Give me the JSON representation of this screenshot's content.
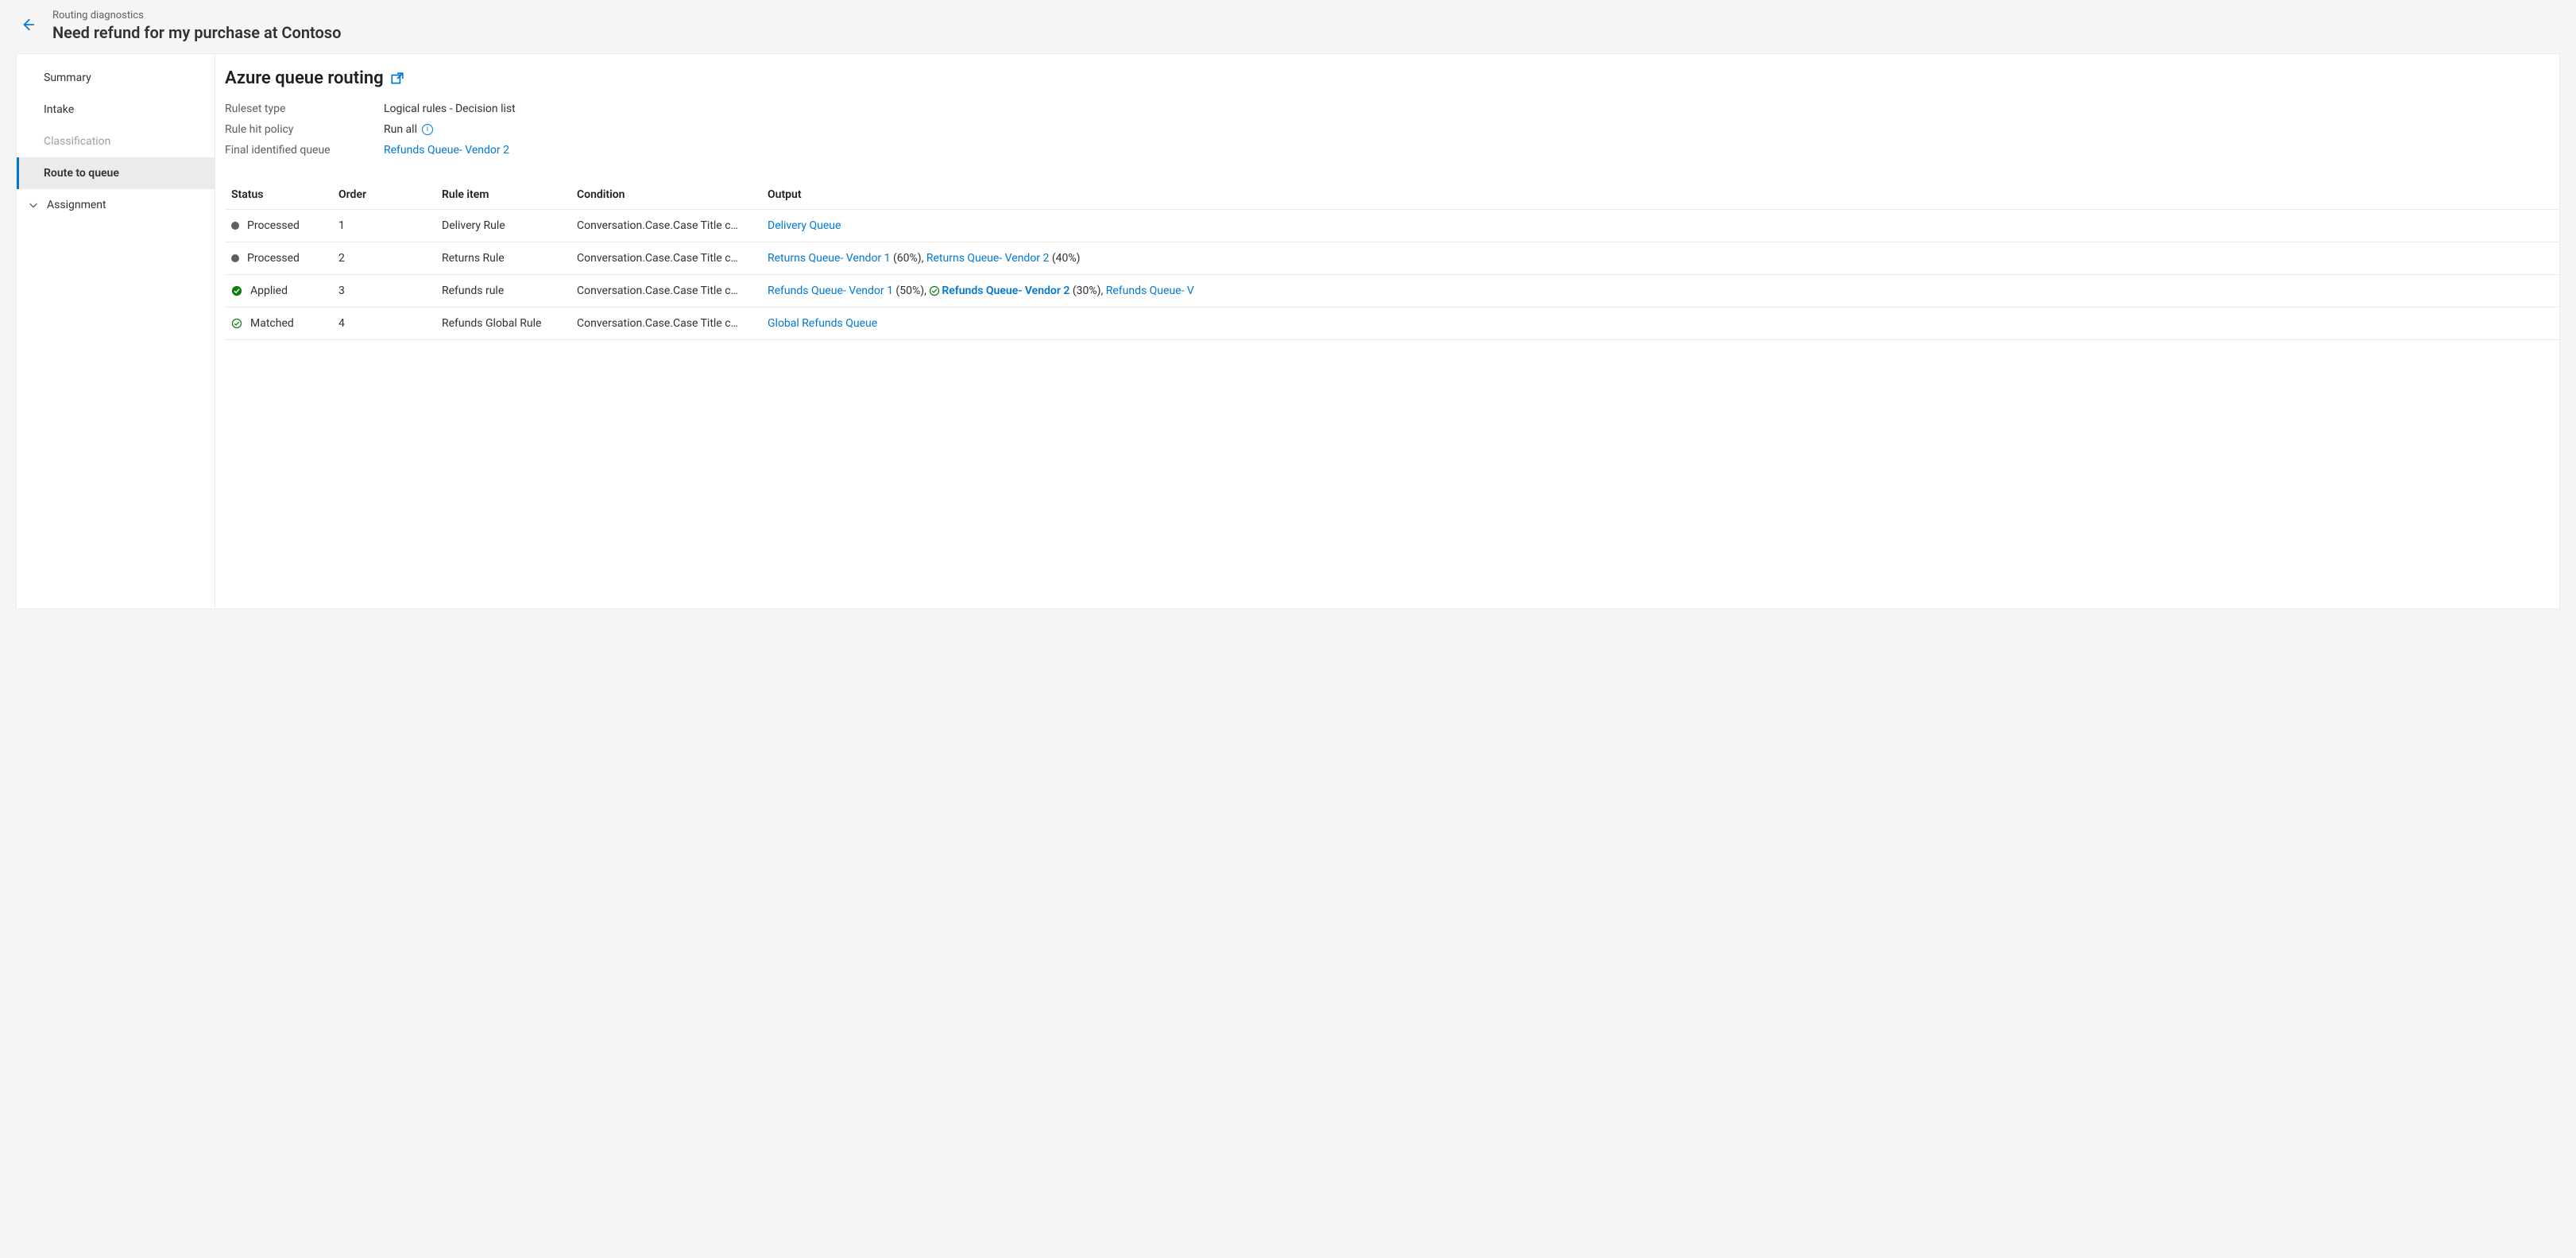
{
  "header": {
    "breadcrumb": "Routing diagnostics",
    "title": "Need refund for my purchase at Contoso"
  },
  "sidebar": {
    "items": [
      {
        "label": "Summary",
        "kind": "plain",
        "active": false
      },
      {
        "label": "Intake",
        "kind": "plain",
        "active": false
      },
      {
        "label": "Classification",
        "kind": "muted",
        "active": false
      },
      {
        "label": "Route to queue",
        "kind": "plain",
        "active": true
      },
      {
        "label": "Assignment",
        "kind": "chevron",
        "active": false
      }
    ]
  },
  "content": {
    "title": "Azure queue routing",
    "meta": {
      "ruleset_type_label": "Ruleset type",
      "ruleset_type_value": "Logical rules - Decision list",
      "rule_hit_policy_label": "Rule hit policy",
      "rule_hit_policy_value": "Run all",
      "final_queue_label": "Final identified queue",
      "final_queue_value": "Refunds Queue- Vendor 2"
    },
    "columns": {
      "status": "Status",
      "order": "Order",
      "rule_item": "Rule item",
      "condition": "Condition",
      "output": "Output"
    },
    "rows": [
      {
        "status_icon": "dot",
        "status": "Processed",
        "order": "1",
        "rule_item": "Delivery Rule",
        "condition": "Conversation.Case.Case Title c…",
        "output": [
          {
            "type": "link",
            "text": "Delivery Queue"
          }
        ]
      },
      {
        "status_icon": "dot",
        "status": "Processed",
        "order": "2",
        "rule_item": "Returns Rule",
        "condition": "Conversation.Case.Case Title c…",
        "output": [
          {
            "type": "link",
            "text": "Returns Queue- Vendor 1"
          },
          {
            "type": "text",
            "text": " (60%), "
          },
          {
            "type": "link",
            "text": "Returns Queue- Vendor 2"
          },
          {
            "type": "text",
            "text": " (40%)"
          }
        ]
      },
      {
        "status_icon": "check-filled",
        "status": "Applied",
        "order": "3",
        "rule_item": "Refunds rule",
        "condition": "Conversation.Case.Case Title c…",
        "output": [
          {
            "type": "link",
            "text": "Refunds Queue- Vendor 1"
          },
          {
            "type": "text",
            "text": " (50%), "
          },
          {
            "type": "icon",
            "icon": "check-outline"
          },
          {
            "type": "link-bold",
            "text": "Refunds Queue- Vendor 2"
          },
          {
            "type": "text",
            "text": " (30%), "
          },
          {
            "type": "link",
            "text": "Refunds Queue- V"
          }
        ]
      },
      {
        "status_icon": "check-outline",
        "status": "Matched",
        "order": "4",
        "rule_item": "Refunds Global Rule",
        "condition": "Conversation.Case.Case Title c…",
        "output": [
          {
            "type": "link",
            "text": "Global Refunds Queue"
          }
        ]
      }
    ]
  },
  "colors": {
    "accent": "#0078d4",
    "success": "#107c10",
    "text": "#323130",
    "muted": "#605e5c",
    "border": "#edebe9",
    "page_bg": "#f5f5f5",
    "panel_bg": "#ffffff",
    "active_bg": "#edebe9"
  }
}
